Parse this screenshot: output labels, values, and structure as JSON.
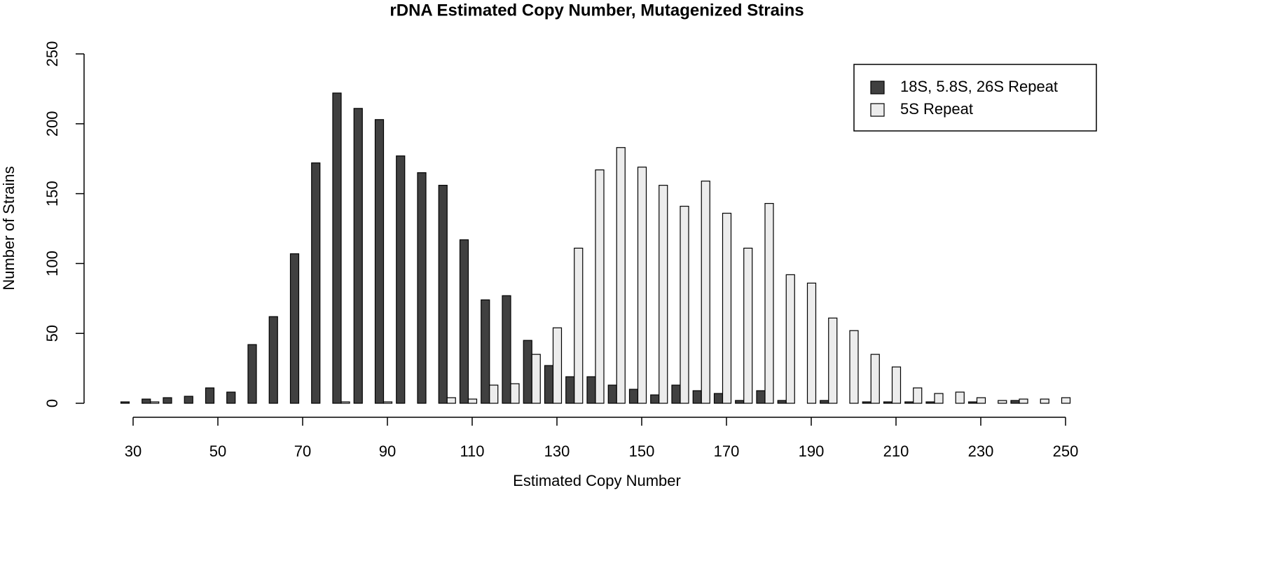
{
  "chart_data": {
    "type": "bar",
    "title": "rDNA Estimated Copy Number, Mutagenized Strains",
    "x_label": "Estimated Copy Number",
    "y_label": "Number of Strains",
    "x": [
      30,
      35,
      40,
      45,
      50,
      55,
      60,
      65,
      70,
      75,
      80,
      85,
      90,
      95,
      100,
      105,
      110,
      115,
      120,
      125,
      130,
      135,
      140,
      145,
      150,
      155,
      160,
      165,
      170,
      175,
      180,
      185,
      190,
      195,
      200,
      205,
      210,
      215,
      220,
      225,
      230,
      235,
      240,
      245,
      250
    ],
    "series": [
      {
        "name": "18S, 5.8S, 26S Repeat",
        "color": "#404040",
        "values": [
          1,
          3,
          4,
          5,
          11,
          8,
          42,
          62,
          107,
          172,
          222,
          211,
          203,
          177,
          165,
          156,
          117,
          74,
          77,
          45,
          27,
          19,
          19,
          13,
          10,
          6,
          13,
          9,
          7,
          2,
          9,
          2,
          0,
          2,
          0,
          1,
          1,
          1,
          1,
          0,
          1,
          0,
          2,
          0,
          0
        ]
      },
      {
        "name": "5S Repeat",
        "color": "#ececec",
        "values": [
          0,
          1,
          0,
          0,
          0,
          0,
          0,
          0,
          0,
          0,
          1,
          0,
          1,
          0,
          0,
          4,
          3,
          13,
          14,
          35,
          54,
          111,
          167,
          183,
          169,
          156,
          141,
          159,
          136,
          111,
          143,
          92,
          86,
          61,
          52,
          35,
          26,
          11,
          7,
          8,
          4,
          2,
          3,
          3,
          4
        ]
      }
    ],
    "xlim": [
      30,
      250
    ],
    "xticks": [
      30,
      50,
      70,
      90,
      110,
      130,
      150,
      170,
      190,
      210,
      230,
      250
    ],
    "ylim": [
      0,
      250
    ],
    "yticks": [
      0,
      50,
      100,
      150,
      200,
      250
    ],
    "legend_position": "top-right"
  }
}
